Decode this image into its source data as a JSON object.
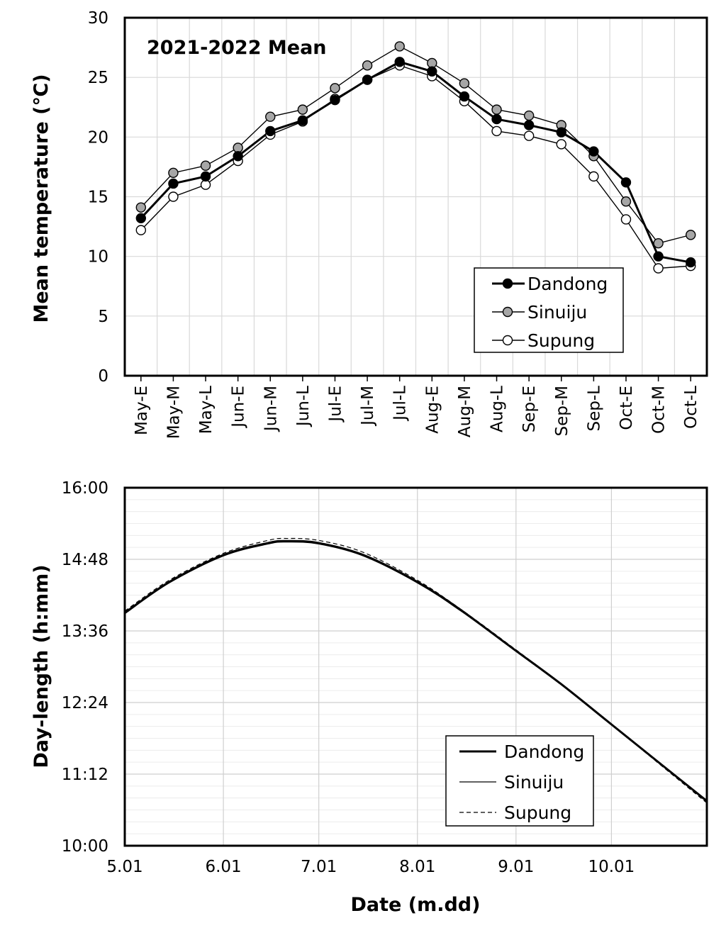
{
  "chart_data": [
    {
      "type": "line",
      "title": "2021-2022 Mean",
      "xlabel": "",
      "ylabel": "Mean temperature (℃)",
      "ylim": [
        0,
        30
      ],
      "yticks": [
        "0",
        "5",
        "10",
        "15",
        "20",
        "25",
        "30"
      ],
      "grid": true,
      "legend_position": "bottom-right",
      "categories": [
        "May-E",
        "May-M",
        "May-L",
        "Jun-E",
        "Jun-M",
        "Jun-L",
        "Jul-E",
        "Jul-M",
        "Jul-L",
        "Aug-E",
        "Aug-M",
        "Aug-L",
        "Sep-E",
        "Sep-M",
        "Sep-L",
        "Oct-E",
        "Oct-M",
        "Oct-L"
      ],
      "series": [
        {
          "name": "Dandong",
          "marker_color": "#000000",
          "values": [
            13.2,
            16.1,
            16.7,
            18.4,
            20.5,
            21.4,
            23.1,
            24.8,
            26.3,
            25.5,
            23.4,
            21.5,
            21.0,
            20.4,
            18.8,
            16.2,
            10.0,
            9.5
          ]
        },
        {
          "name": "Sinuiju",
          "marker_color": "#a6a6a6",
          "values": [
            14.1,
            17.0,
            17.6,
            19.1,
            21.7,
            22.3,
            24.1,
            26.0,
            27.6,
            26.2,
            24.5,
            22.3,
            21.8,
            21.0,
            18.4,
            14.6,
            11.1,
            11.8
          ]
        },
        {
          "name": "Supung",
          "marker_color": "#ffffff",
          "values": [
            12.2,
            15.0,
            16.0,
            18.0,
            20.2,
            21.3,
            23.2,
            24.8,
            26.0,
            25.1,
            23.0,
            20.5,
            20.1,
            19.4,
            16.7,
            13.1,
            9.0,
            9.2
          ]
        }
      ]
    },
    {
      "type": "line",
      "title": "",
      "xlabel": "Date (m.dd)",
      "ylabel": "Day-length (h:mm)",
      "xlim": [
        "5.01",
        "10.31"
      ],
      "ylim": [
        "10:00",
        "16:00"
      ],
      "xticks": [
        "5.01",
        "6.01",
        "7.01",
        "8.01",
        "9.01",
        "10.01"
      ],
      "yticks": [
        "10:00",
        "11:12",
        "12:24",
        "13:36",
        "14:48",
        "16:00"
      ],
      "grid": true,
      "legend_position": "bottom-center",
      "series": [
        {
          "name": "Dandong",
          "line_style": "solid-thick",
          "points": [
            [
              "5.01",
              "13:54"
            ],
            [
              "5.15",
              "14:25"
            ],
            [
              "6.01",
              "14:52"
            ],
            [
              "6.15",
              "15:04"
            ],
            [
              "6.21",
              "15:06"
            ],
            [
              "7.01",
              "15:04"
            ],
            [
              "7.15",
              "14:52"
            ],
            [
              "8.01",
              "14:25"
            ],
            [
              "8.15",
              "13:56"
            ],
            [
              "9.01",
              "13:16"
            ],
            [
              "9.15",
              "12:43"
            ],
            [
              "10.01",
              "12:02"
            ],
            [
              "10.15",
              "11:26"
            ],
            [
              "10.31",
              "10:45"
            ]
          ]
        },
        {
          "name": "Sinuiju",
          "line_style": "solid-thin",
          "points": [
            [
              "5.01",
              "13:55"
            ],
            [
              "5.15",
              "14:26"
            ],
            [
              "6.01",
              "14:53"
            ],
            [
              "6.15",
              "15:05"
            ],
            [
              "6.21",
              "15:07"
            ],
            [
              "7.01",
              "15:05"
            ],
            [
              "7.15",
              "14:53"
            ],
            [
              "8.01",
              "14:26"
            ],
            [
              "8.15",
              "13:57"
            ],
            [
              "9.01",
              "13:16"
            ],
            [
              "9.15",
              "12:43"
            ],
            [
              "10.01",
              "12:02"
            ],
            [
              "10.15",
              "11:26"
            ],
            [
              "10.31",
              "10:44"
            ]
          ]
        },
        {
          "name": "Supung",
          "line_style": "dashed",
          "points": [
            [
              "5.01",
              "13:56"
            ],
            [
              "5.15",
              "14:27"
            ],
            [
              "6.01",
              "14:54"
            ],
            [
              "6.15",
              "15:07"
            ],
            [
              "6.21",
              "15:09"
            ],
            [
              "7.01",
              "15:07"
            ],
            [
              "7.15",
              "14:55"
            ],
            [
              "8.01",
              "14:27"
            ],
            [
              "8.15",
              "13:57"
            ],
            [
              "9.01",
              "13:17"
            ],
            [
              "9.15",
              "12:43"
            ],
            [
              "10.01",
              "12:02"
            ],
            [
              "10.15",
              "11:25"
            ],
            [
              "10.31",
              "10:43"
            ]
          ]
        }
      ]
    }
  ]
}
